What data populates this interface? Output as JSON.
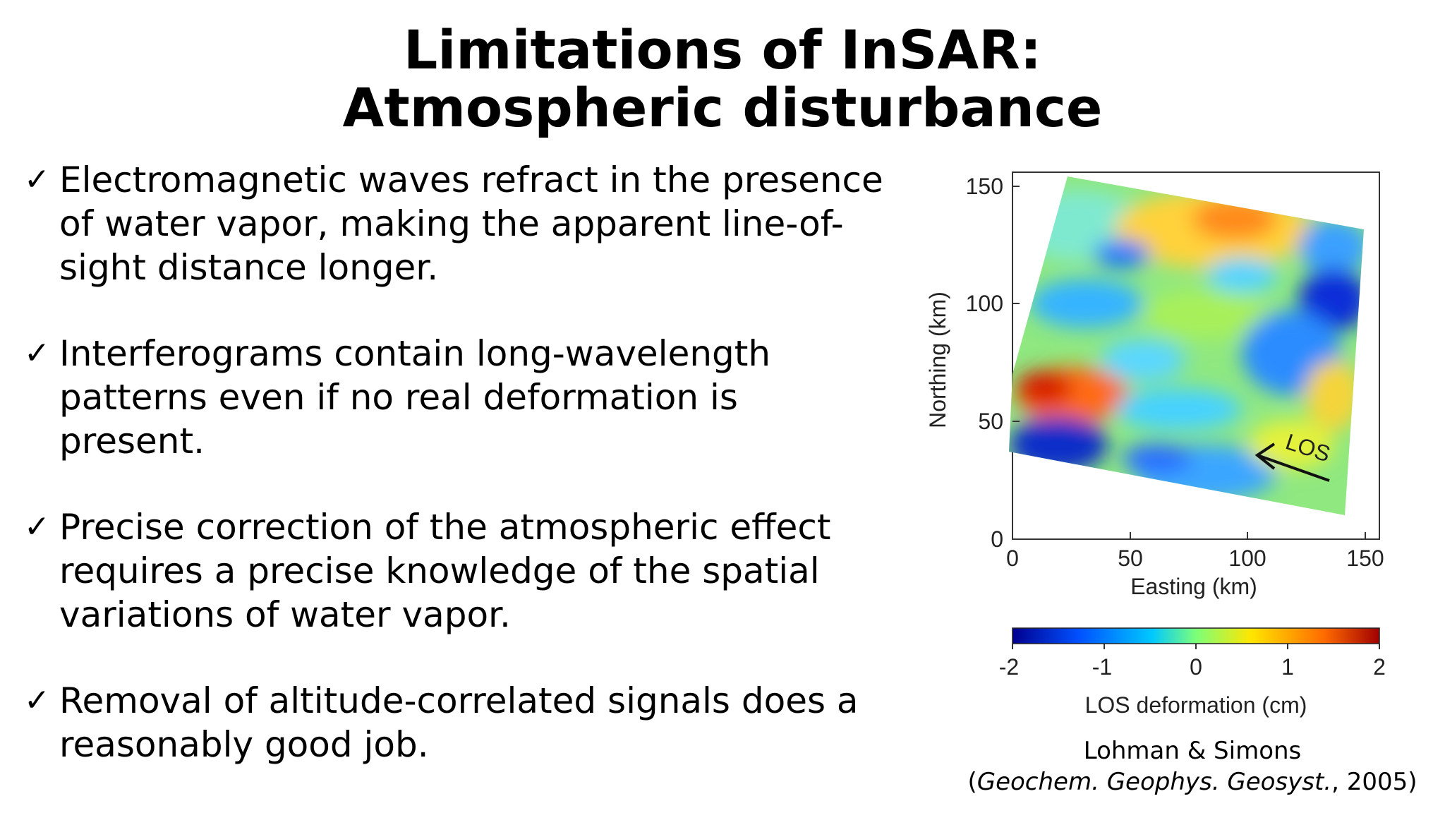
{
  "slide": {
    "title_line1": "Limitations of InSAR:",
    "title_line2": "Atmospheric disturbance"
  },
  "bullets": [
    {
      "check": "✓",
      "text": "Electromagnetic waves refract in the presence of water vapor, making the apparent line-of-sight distance longer."
    },
    {
      "check": "✓",
      "text": "Interferograms contain long-wavelength patterns even if no real deformation is present."
    },
    {
      "check": "✓",
      "text": "Precise correction of the atmospheric effect requires a precise knowledge of the spatial variations of water vapor."
    },
    {
      "check": "✓",
      "text": "Removal of altitude-correlated signals does a reasonably good job."
    }
  ],
  "figure": {
    "ylabel": "Northing (km)",
    "xlabel": "Easting (km)",
    "yticks": [
      "0",
      "50",
      "100",
      "150"
    ],
    "xticks": [
      "0",
      "50",
      "100",
      "150"
    ],
    "los_label": "LOS",
    "colorbar_ticks": [
      "-2",
      "-1",
      "0",
      "1",
      "2"
    ],
    "colorbar_label": "LOS deformation (cm)",
    "colormap": [
      "#00008f",
      "#0050ff",
      "#00c8ff",
      "#7cff79",
      "#ffe600",
      "#ff6a00",
      "#a00000"
    ]
  },
  "caption": {
    "line1": "Lohman & Simons",
    "open_paren": "(",
    "journal": "Geochem. Geophys. Geosyst.",
    "year": ", 2005)"
  }
}
